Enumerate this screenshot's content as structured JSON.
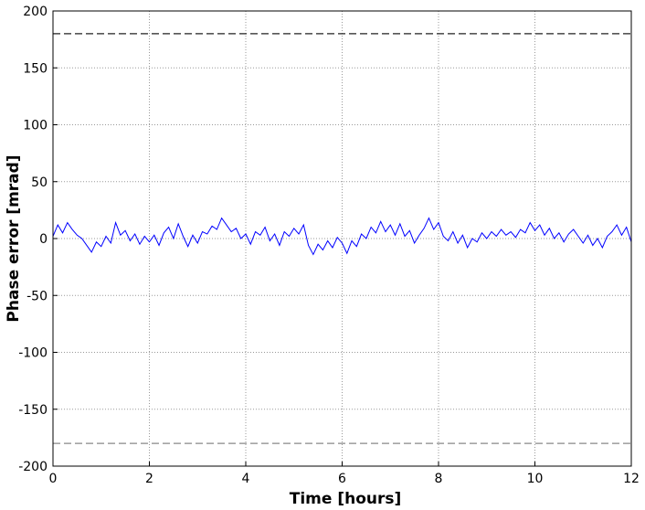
{
  "chart_data": {
    "type": "line",
    "xlabel": "Time [hours]",
    "ylabel": "Phase error [mrad]",
    "xlim": [
      0,
      12
    ],
    "xticks": [
      0,
      2,
      4,
      6,
      8,
      10,
      12
    ],
    "ylim": [
      -200,
      200
    ],
    "yticks": [
      -200,
      -150,
      -100,
      -50,
      0,
      50,
      100,
      150,
      200
    ],
    "grid": true,
    "hlines": [
      {
        "value": 180,
        "color": "#222222"
      },
      {
        "value": -180,
        "color": "#888888"
      }
    ],
    "x": [
      0,
      0.1,
      0.2,
      0.3,
      0.4,
      0.5,
      0.6,
      0.7,
      0.8,
      0.9,
      1,
      1.1,
      1.2,
      1.3,
      1.4,
      1.5,
      1.6,
      1.7,
      1.8,
      1.9,
      2,
      2.1,
      2.2,
      2.3,
      2.4,
      2.5,
      2.6,
      2.7,
      2.8,
      2.9,
      3,
      3.1,
      3.2,
      3.3,
      3.4,
      3.5,
      3.6,
      3.7,
      3.8,
      3.9,
      4,
      4.1,
      4.2,
      4.3,
      4.4,
      4.5,
      4.6,
      4.7,
      4.8,
      4.9,
      5,
      5.1,
      5.2,
      5.3,
      5.4,
      5.5,
      5.6,
      5.7,
      5.8,
      5.9,
      6,
      6.1,
      6.2,
      6.3,
      6.4,
      6.5,
      6.6,
      6.7,
      6.8,
      6.9,
      7,
      7.1,
      7.2,
      7.3,
      7.4,
      7.5,
      7.6,
      7.7,
      7.8,
      7.9,
      8,
      8.1,
      8.2,
      8.3,
      8.4,
      8.5,
      8.6,
      8.7,
      8.8,
      8.9,
      9,
      9.1,
      9.2,
      9.3,
      9.4,
      9.5,
      9.6,
      9.7,
      9.8,
      9.9,
      10,
      10.1,
      10.2,
      10.3,
      10.4,
      10.5,
      10.6,
      10.7,
      10.8,
      10.9,
      11,
      11.1,
      11.2,
      11.3,
      11.4,
      11.5,
      11.6,
      11.7,
      11.8,
      11.9,
      12
    ],
    "series": [
      {
        "color": "#0000ff",
        "values": [
          2,
          12,
          5,
          14,
          8,
          3,
          0,
          -6,
          -12,
          -3,
          -7,
          2,
          -4,
          14,
          3,
          7,
          -2,
          4,
          -5,
          2,
          -3,
          3,
          -6,
          5,
          10,
          0,
          13,
          2,
          -7,
          3,
          -4,
          6,
          4,
          11,
          8,
          18,
          12,
          6,
          9,
          0,
          4,
          -5,
          6,
          3,
          10,
          -2,
          4,
          -6,
          6,
          2,
          9,
          4,
          12,
          -6,
          -14,
          -5,
          -10,
          -2,
          -8,
          1,
          -4,
          -13,
          -2,
          -7,
          4,
          0,
          10,
          5,
          15,
          6,
          12,
          3,
          13,
          2,
          7,
          -4,
          3,
          9,
          18,
          8,
          14,
          2,
          -2,
          6,
          -4,
          3,
          -8,
          0,
          -3,
          5,
          0,
          6,
          2,
          8,
          3,
          6,
          1,
          8,
          5,
          14,
          7,
          12,
          3,
          9,
          0,
          5,
          -3,
          4,
          8,
          2,
          -4,
          3,
          -6,
          0,
          -8,
          2,
          6,
          12,
          3,
          10,
          -3
        ]
      }
    ]
  }
}
